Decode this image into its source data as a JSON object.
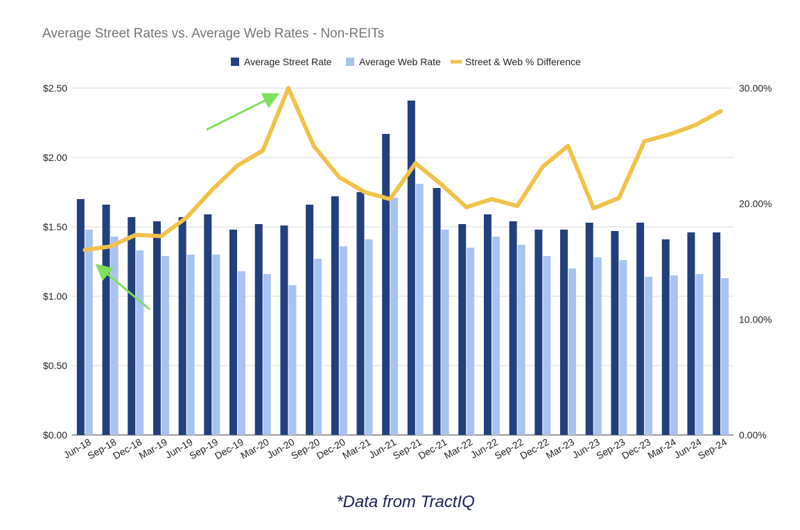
{
  "chart_data": {
    "type": "bar",
    "title": "Average Street Rates vs. Average Web Rates - Non-REITs",
    "categories": [
      "Jun-18",
      "Sep-18",
      "Dec-18",
      "Mar-19",
      "Jun-19",
      "Sep-19",
      "Dec-19",
      "Mar-20",
      "Jun-20",
      "Sep-20",
      "Dec-20",
      "Mar-21",
      "Jun-21",
      "Sep-21",
      "Dec-21",
      "Mar-22",
      "Jun-22",
      "Sep-22",
      "Dec-22",
      "Mar-23",
      "Jun-23",
      "Sep-23",
      "Dec-23",
      "Mar-24",
      "Jun-24",
      "Sep-24"
    ],
    "series": [
      {
        "name": "Average Street Rate",
        "type": "bar",
        "axis": "left",
        "color": "#22407e",
        "values": [
          1.7,
          1.66,
          1.57,
          1.54,
          1.57,
          1.59,
          1.48,
          1.52,
          1.51,
          1.66,
          1.72,
          1.75,
          2.17,
          2.41,
          1.78,
          1.52,
          1.59,
          1.54,
          1.48,
          1.48,
          1.53,
          1.47,
          1.53,
          1.41,
          1.46,
          1.46
        ]
      },
      {
        "name": "Average Web Rate",
        "type": "bar",
        "axis": "left",
        "color": "#a9c3f0",
        "values": [
          1.48,
          1.43,
          1.33,
          1.29,
          1.3,
          1.3,
          1.18,
          1.16,
          1.08,
          1.27,
          1.36,
          1.41,
          1.71,
          1.81,
          1.48,
          1.35,
          1.43,
          1.37,
          1.29,
          1.2,
          1.28,
          1.26,
          1.14,
          1.15,
          1.16,
          1.13
        ]
      },
      {
        "name": "Street & Web % Difference",
        "type": "line",
        "axis": "right",
        "color": "#f0c24a",
        "values": [
          16.0,
          16.3,
          17.3,
          17.2,
          18.8,
          21.2,
          23.3,
          24.6,
          30.0,
          25.0,
          22.3,
          21.0,
          20.4,
          23.5,
          21.7,
          19.7,
          20.4,
          19.8,
          23.2,
          25.0,
          19.6,
          20.5,
          25.4,
          26.0,
          26.8,
          28.0
        ]
      }
    ],
    "y_left": {
      "range": [
        0,
        2.5
      ],
      "ticks": [
        0,
        0.5,
        1.0,
        1.5,
        2.0,
        2.5
      ],
      "tick_labels": [
        "$0.00",
        "$0.50",
        "$1.00",
        "$1.50",
        "$2.00",
        "$2.50"
      ]
    },
    "y_right": {
      "range": [
        0,
        30
      ],
      "ticks": [
        0,
        10,
        20,
        30
      ],
      "tick_labels": [
        "0.00%",
        "10.00%",
        "20.00%",
        "30.00%"
      ]
    },
    "grid": true,
    "legend_position": "top-center",
    "annotations": [
      {
        "name": "green-arrow-up",
        "type": "arrow",
        "color": "#7ee05a",
        "target": "Jun-20"
      },
      {
        "name": "green-arrow-down",
        "type": "arrow",
        "color": "#7ee05a",
        "target": "Jun-18"
      }
    ]
  },
  "footnote": "*Data from TractIQ"
}
